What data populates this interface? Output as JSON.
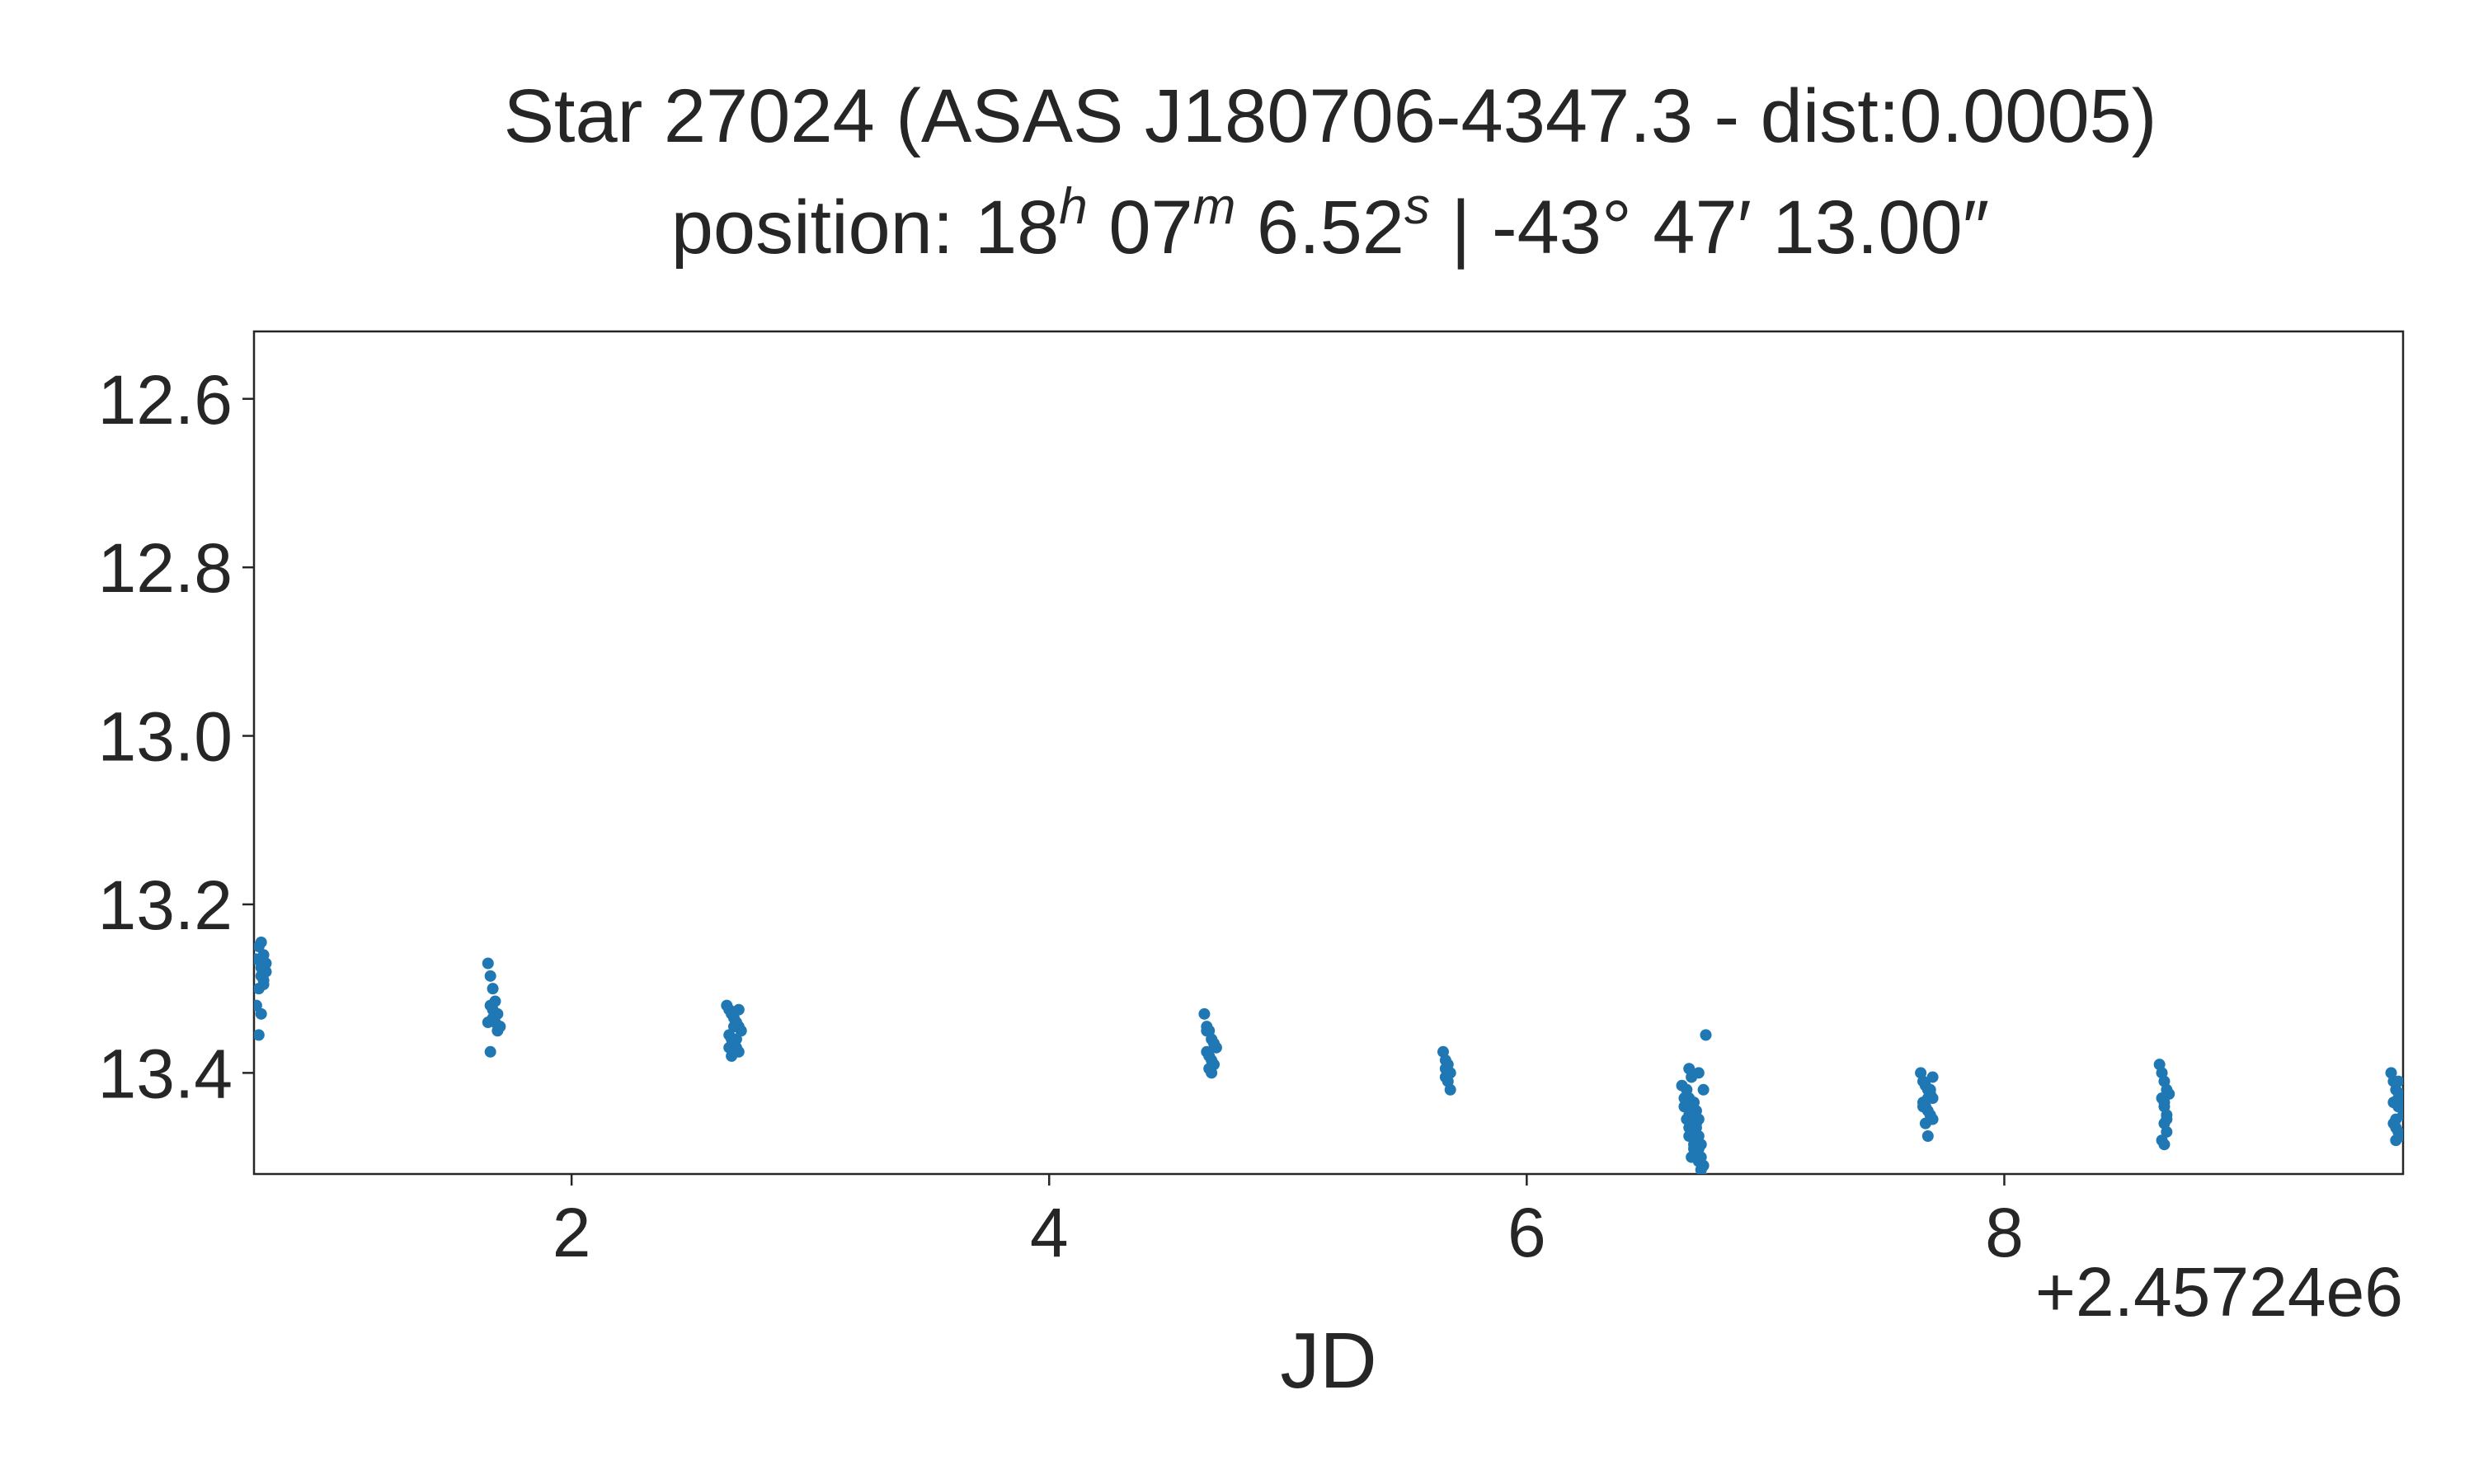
{
  "chart_data": {
    "type": "scatter",
    "title_line1": "Star 27024 (ASAS J180706-4347.3 - dist:0.0005)",
    "title_line2": {
      "prefix": "position: 18",
      "h": "h",
      "mid1": " 07",
      "m": "m",
      "mid2": " 6.52",
      "s": "s",
      "suffix": " | -43° 47′ 13.00″"
    },
    "xlabel": "JD",
    "ylabel": "",
    "x_offset_label": "+2.45724e6",
    "xlim": [
      0.67,
      9.67
    ],
    "ylim": [
      13.52,
      12.52
    ],
    "y_inverted": true,
    "x_ticks": [
      "2",
      "4",
      "6",
      "8"
    ],
    "y_ticks": [
      "12.6",
      "12.8",
      "13.0",
      "13.2",
      "13.4"
    ],
    "grid": false,
    "legend": "none",
    "marker_color": "#1f77b4",
    "series": [
      {
        "x": [
          0.68,
          0.69,
          0.7,
          0.71,
          0.72,
          0.7,
          0.69,
          0.71,
          0.68,
          0.7,
          0.69,
          0.72,
          0.71,
          0.7,
          1.65,
          1.66,
          1.67,
          1.68,
          1.69,
          1.7,
          1.66,
          1.67,
          1.68,
          1.69,
          1.65,
          1.67,
          1.68,
          1.7,
          1.66,
          2.65,
          2.66,
          2.67,
          2.68,
          2.69,
          2.7,
          2.71,
          2.66,
          2.67,
          2.68,
          2.69,
          2.7,
          2.67,
          2.68,
          2.69,
          2.66,
          2.7,
          4.65,
          4.66,
          4.67,
          4.68,
          4.69,
          4.7,
          4.66,
          4.67,
          4.68,
          4.69,
          4.67,
          4.68,
          4.66,
          5.65,
          5.66,
          5.67,
          5.68,
          5.66,
          5.67,
          5.68,
          5.66,
          6.65,
          6.66,
          6.67,
          6.68,
          6.69,
          6.7,
          6.71,
          6.72,
          6.73,
          6.74,
          6.75,
          6.66,
          6.67,
          6.68,
          6.69,
          6.7,
          6.71,
          6.72,
          6.73,
          6.74,
          6.67,
          6.68,
          6.69,
          6.7,
          6.71,
          6.72,
          6.73,
          6.68,
          6.69,
          6.7,
          6.71,
          6.72,
          6.68,
          6.7,
          6.72,
          6.74,
          6.69,
          6.71,
          7.65,
          7.66,
          7.67,
          7.68,
          7.69,
          7.7,
          7.66,
          7.67,
          7.68,
          7.69,
          7.7,
          7.67,
          7.68,
          7.69,
          7.66,
          7.68,
          7.7,
          8.65,
          8.66,
          8.67,
          8.68,
          8.69,
          8.66,
          8.67,
          8.68,
          8.67,
          8.68,
          8.66,
          8.67,
          8.68,
          8.67,
          9.62,
          9.63,
          9.64,
          9.65,
          9.66,
          9.67,
          9.63,
          9.64,
          9.65,
          9.66,
          9.64,
          9.65,
          9.63,
          9.66,
          9.64,
          9.65
        ],
        "y": [
          13.265,
          13.25,
          13.275,
          13.29,
          13.27,
          13.285,
          13.3,
          13.26,
          13.32,
          13.33,
          13.355,
          13.28,
          13.295,
          13.245,
          13.27,
          13.285,
          13.3,
          13.315,
          13.33,
          13.345,
          13.32,
          13.335,
          13.34,
          13.35,
          13.34,
          13.325,
          13.33,
          13.345,
          13.375,
          13.32,
          13.325,
          13.33,
          13.335,
          13.34,
          13.345,
          13.35,
          13.355,
          13.36,
          13.365,
          13.37,
          13.375,
          13.38,
          13.345,
          13.36,
          13.37,
          13.325,
          13.33,
          13.345,
          13.35,
          13.36,
          13.365,
          13.37,
          13.375,
          13.38,
          13.385,
          13.39,
          13.395,
          13.4,
          13.35,
          13.375,
          13.385,
          13.39,
          13.4,
          13.405,
          13.41,
          13.42,
          13.395,
          13.415,
          13.43,
          13.44,
          13.45,
          13.46,
          13.47,
          13.48,
          13.49,
          13.5,
          13.51,
          13.355,
          13.44,
          13.455,
          13.465,
          13.475,
          13.485,
          13.495,
          13.505,
          13.515,
          13.525,
          13.42,
          13.43,
          13.445,
          13.455,
          13.465,
          13.475,
          13.485,
          13.395,
          13.405,
          13.435,
          13.445,
          13.455,
          13.475,
          13.49,
          13.4,
          13.42,
          13.5,
          13.46,
          13.4,
          13.41,
          13.415,
          13.42,
          13.425,
          13.43,
          13.435,
          13.44,
          13.445,
          13.45,
          13.455,
          13.46,
          13.43,
          13.42,
          13.44,
          13.475,
          13.405,
          13.39,
          13.4,
          13.41,
          13.42,
          13.425,
          13.43,
          13.44,
          13.45,
          13.46,
          13.47,
          13.48,
          13.485,
          13.455,
          13.435,
          13.4,
          13.41,
          13.42,
          13.43,
          13.44,
          13.45,
          13.46,
          13.465,
          13.47,
          13.475,
          13.48,
          13.44,
          13.435,
          13.425,
          13.455,
          13.41
        ]
      }
    ]
  }
}
